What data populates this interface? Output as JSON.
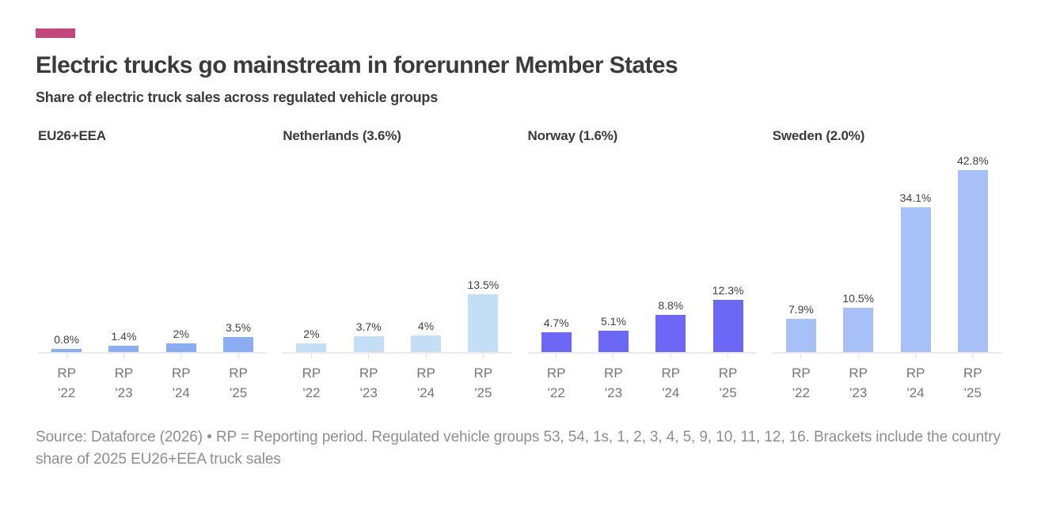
{
  "header": {
    "title": "Electric trucks go mainstream in forerunner Member States",
    "subtitle": "Share of electric truck sales across regulated vehicle groups",
    "accent_color": "#c2477c"
  },
  "chart_data": {
    "type": "bar",
    "categories": [
      "RP '22",
      "RP '23",
      "RP '24",
      "RP '25"
    ],
    "unit": "%",
    "ylim": [
      0,
      45
    ],
    "grid": false,
    "legend": "none",
    "value_labels_shown": true,
    "groups": [
      {
        "name": "EU26+EEA",
        "color": "#8badf2",
        "values": [
          0.8,
          1.4,
          2,
          3.5
        ],
        "value_labels": [
          "0.8%",
          "1.4%",
          "2%",
          "3.5%"
        ]
      },
      {
        "name": "Netherlands (3.6%)",
        "color": "#c3def5",
        "values": [
          2,
          3.7,
          4,
          13.5
        ],
        "value_labels": [
          "2%",
          "3.7%",
          "4%",
          "13.5%"
        ]
      },
      {
        "name": "Norway (1.6%)",
        "color": "#6c67f5",
        "values": [
          4.7,
          5.1,
          8.8,
          12.3
        ],
        "value_labels": [
          "4.7%",
          "5.1%",
          "8.8%",
          "12.3%"
        ]
      },
      {
        "name": "Sweden (2.0%)",
        "color": "#a7c0f7",
        "values": [
          7.9,
          10.5,
          34.1,
          42.8
        ],
        "value_labels": [
          "7.9%",
          "10.5%",
          "34.1%",
          "42.8%"
        ]
      }
    ]
  },
  "footer": {
    "source": "Source: Dataforce (2026) • RP = Reporting period. Regulated vehicle groups 53, 54, 1s, 1, 2, 3, 4, 5, 9, 10, 11, 12, 16. Brackets include the country share of 2025 EU26+EEA truck sales"
  }
}
